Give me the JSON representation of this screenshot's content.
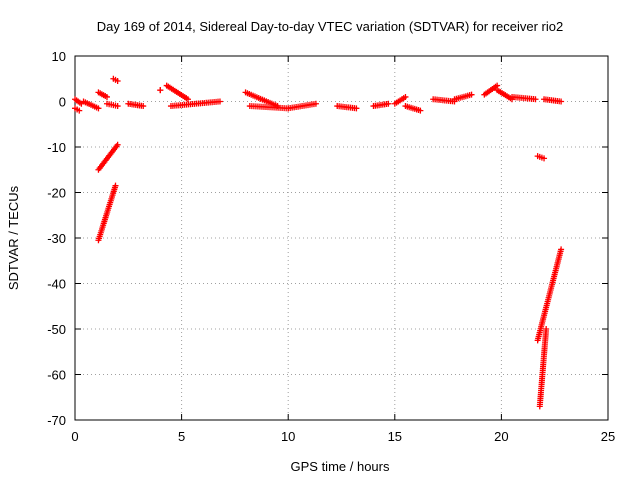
{
  "chart_data": {
    "type": "scatter",
    "title": "Day 169 of 2014, Sidereal Day-to-day VTEC variation (SDTVAR) for receiver rio2",
    "xlabel": "GPS time / hours",
    "ylabel": "SDTVAR / TECUs",
    "xlim": [
      0,
      25
    ],
    "ylim": [
      -70,
      10
    ],
    "xticks": [
      0,
      5,
      10,
      15,
      20,
      25
    ],
    "yticks": [
      10,
      0,
      -10,
      -20,
      -30,
      -40,
      -50,
      -60,
      -70
    ],
    "grid": true,
    "marker": "+",
    "color": "#ff0000",
    "segments": [
      {
        "x": [
          0.0,
          0.3
        ],
        "y": [
          0.5,
          -0.5
        ]
      },
      {
        "x": [
          0.0,
          0.2
        ],
        "y": [
          -1.5,
          -2.0
        ]
      },
      {
        "x": [
          0.4,
          1.1
        ],
        "y": [
          0.0,
          -1.5
        ]
      },
      {
        "x": [
          1.1,
          1.5
        ],
        "y": [
          2.0,
          1.0
        ]
      },
      {
        "x": [
          1.5,
          2.0
        ],
        "y": [
          -0.5,
          -1.0
        ]
      },
      {
        "x": [
          1.8,
          2.0
        ],
        "y": [
          5.0,
          4.5
        ]
      },
      {
        "x": [
          1.1,
          2.0
        ],
        "y": [
          -15.0,
          -9.5
        ]
      },
      {
        "x": [
          1.1,
          1.9
        ],
        "y": [
          -30.5,
          -18.5
        ]
      },
      {
        "x": [
          2.5,
          3.2
        ],
        "y": [
          -0.5,
          -1.0
        ]
      },
      {
        "x": [
          4.0,
          4.0
        ],
        "y": [
          2.5,
          2.5
        ]
      },
      {
        "x": [
          4.3,
          5.3
        ],
        "y": [
          3.5,
          0.5
        ]
      },
      {
        "x": [
          4.5,
          6.8
        ],
        "y": [
          -1.0,
          0.0
        ]
      },
      {
        "x": [
          8.0,
          9.5
        ],
        "y": [
          2.0,
          -1.0
        ]
      },
      {
        "x": [
          8.2,
          10.0
        ],
        "y": [
          -1.0,
          -1.5
        ]
      },
      {
        "x": [
          10.0,
          11.3
        ],
        "y": [
          -1.5,
          -0.5
        ]
      },
      {
        "x": [
          12.3,
          13.2
        ],
        "y": [
          -1.0,
          -1.5
        ]
      },
      {
        "x": [
          14.0,
          14.7
        ],
        "y": [
          -1.0,
          -0.5
        ]
      },
      {
        "x": [
          15.0,
          15.5
        ],
        "y": [
          -0.5,
          1.0
        ]
      },
      {
        "x": [
          15.5,
          16.2
        ],
        "y": [
          -1.0,
          -2.0
        ]
      },
      {
        "x": [
          16.8,
          17.8
        ],
        "y": [
          0.5,
          0.0
        ]
      },
      {
        "x": [
          17.8,
          18.6
        ],
        "y": [
          0.5,
          1.5
        ]
      },
      {
        "x": [
          19.2,
          19.8
        ],
        "y": [
          1.5,
          3.5
        ]
      },
      {
        "x": [
          19.8,
          20.5
        ],
        "y": [
          2.5,
          0.5
        ]
      },
      {
        "x": [
          20.5,
          21.6
        ],
        "y": [
          1.0,
          0.5
        ]
      },
      {
        "x": [
          22.0,
          22.8
        ],
        "y": [
          0.5,
          0.0
        ]
      },
      {
        "x": [
          21.7,
          22.0
        ],
        "y": [
          -12.0,
          -12.5
        ]
      },
      {
        "x": [
          21.7,
          22.8
        ],
        "y": [
          -52.5,
          -32.5
        ]
      },
      {
        "x": [
          21.8,
          22.1
        ],
        "y": [
          -67.0,
          -50.0
        ]
      }
    ]
  }
}
